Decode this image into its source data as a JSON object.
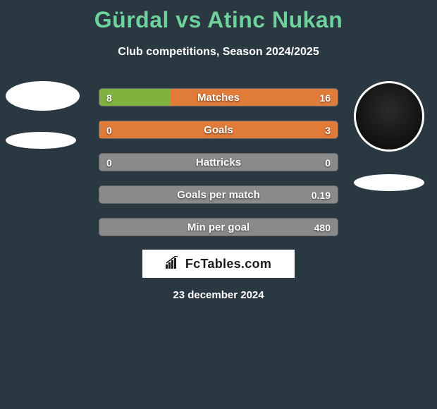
{
  "title": "Gürdal vs Atinc Nukan",
  "title_color": "#6fd19e",
  "subtitle": "Club competitions, Season 2024/2025",
  "background_color": "#2a3842",
  "players": {
    "left": {
      "avatar_bg": "#ffffff"
    },
    "right": {
      "avatar_bg": "#1a1a1a"
    }
  },
  "bars": {
    "track_color": "#8a8a8a",
    "left_fill_color": "#7fb23f",
    "right_fill_color": "#e07b3a",
    "label_color": "#ffffff",
    "label_fontsize": 15,
    "value_fontsize": 14,
    "rows": [
      {
        "label": "Matches",
        "left_val": "8",
        "right_val": "16",
        "left_pct": 30,
        "right_pct": 70
      },
      {
        "label": "Goals",
        "left_val": "0",
        "right_val": "3",
        "left_pct": 0,
        "right_pct": 100
      },
      {
        "label": "Hattricks",
        "left_val": "0",
        "right_val": "0",
        "left_pct": 0,
        "right_pct": 0
      },
      {
        "label": "Goals per match",
        "left_val": "",
        "right_val": "0.19",
        "left_pct": 0,
        "right_pct": 0
      },
      {
        "label": "Min per goal",
        "left_val": "",
        "right_val": "480",
        "left_pct": 0,
        "right_pct": 0
      }
    ]
  },
  "footer": {
    "logo_text": "FcTables.com",
    "date": "23 december 2024"
  }
}
